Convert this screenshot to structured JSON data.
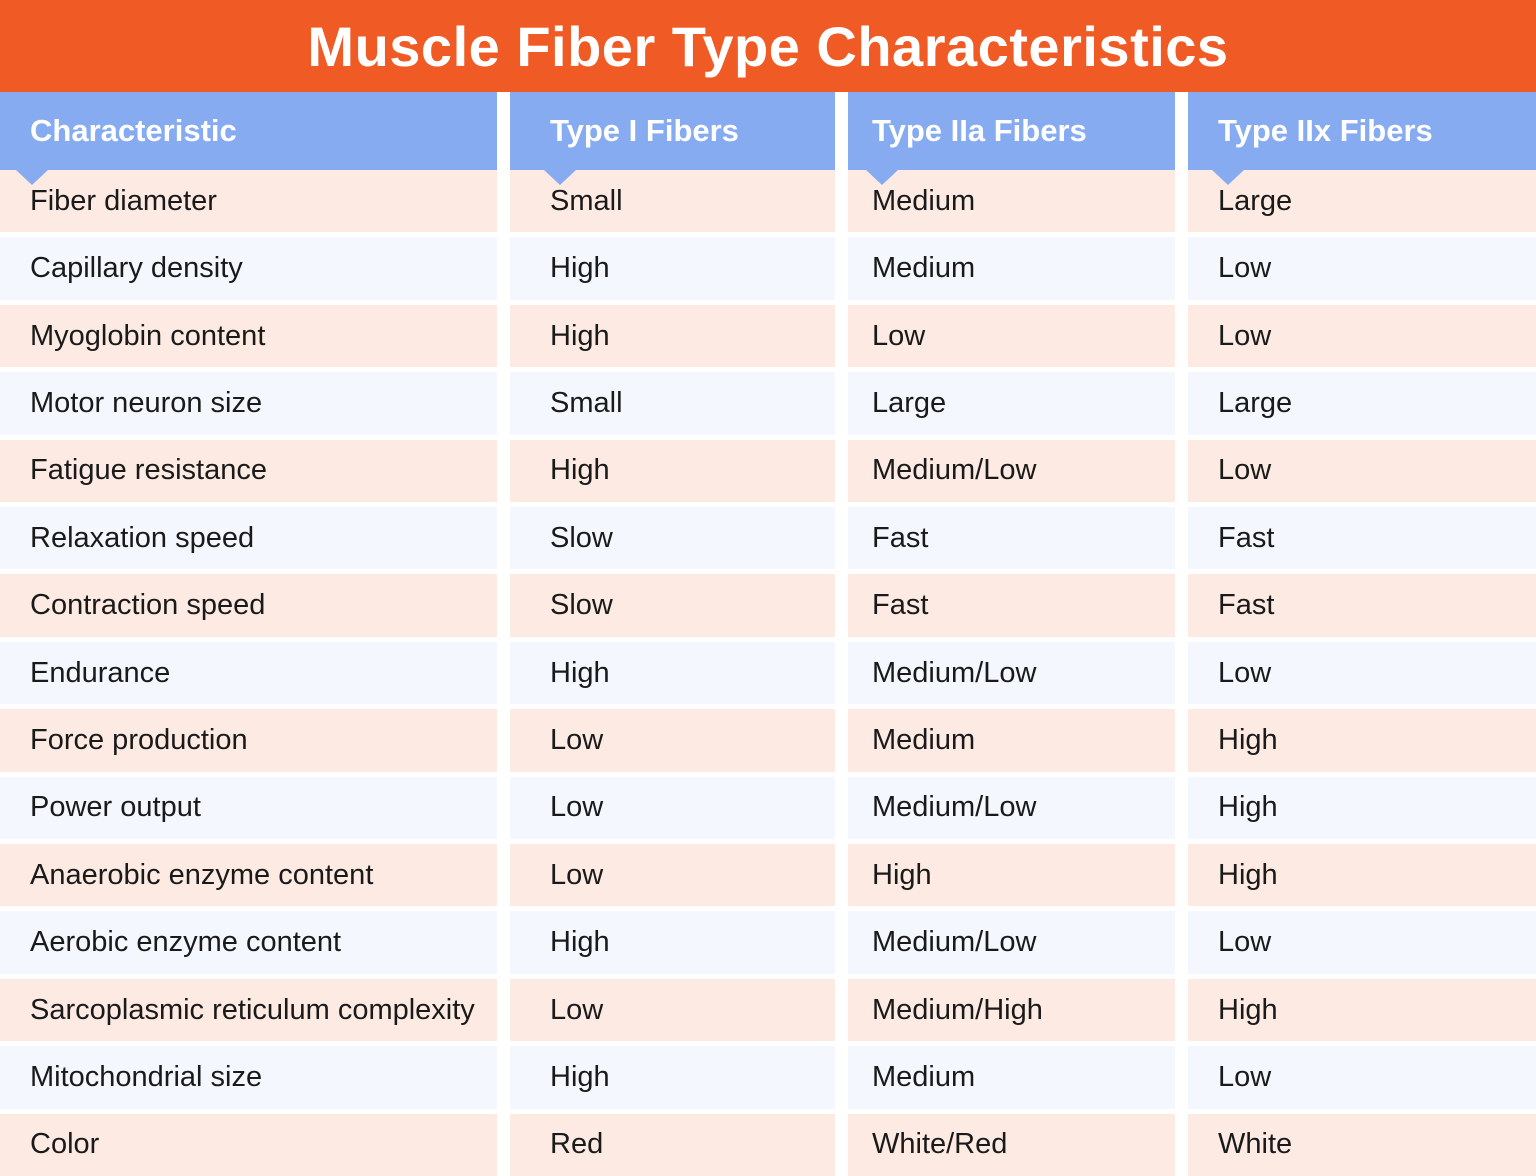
{
  "chart_data": {
    "type": "table",
    "title": "Muscle Fiber Type Characteristics",
    "columns": [
      "Characteristic",
      "Type I Fibers",
      "Type IIa Fibers",
      "Type IIx Fibers"
    ],
    "rows": [
      [
        "Fiber diameter",
        "Small",
        "Medium",
        "Large"
      ],
      [
        "Capillary density",
        "High",
        "Medium",
        "Low"
      ],
      [
        "Myoglobin content",
        "High",
        "Low",
        "Low"
      ],
      [
        "Motor neuron size",
        "Small",
        "Large",
        "Large"
      ],
      [
        "Fatigue resistance",
        "High",
        "Medium/Low",
        "Low"
      ],
      [
        "Relaxation speed",
        "Slow",
        "Fast",
        "Fast"
      ],
      [
        "Contraction speed",
        "Slow",
        "Fast",
        "Fast"
      ],
      [
        "Endurance",
        "High",
        "Medium/Low",
        "Low"
      ],
      [
        "Force production",
        "Low",
        "Medium",
        "High"
      ],
      [
        "Power output",
        "Low",
        "Medium/Low",
        "High"
      ],
      [
        "Anaerobic enzyme content",
        "Low",
        "High",
        "High"
      ],
      [
        "Aerobic enzyme content",
        "High",
        "Medium/Low",
        "Low"
      ],
      [
        "Sarcoplasmic reticulum complexity",
        "Low",
        "Medium/High",
        "High"
      ],
      [
        "Mitochondrial size",
        "High",
        "Medium",
        "Low"
      ],
      [
        "Color",
        "Red",
        "White/Red",
        "White"
      ]
    ]
  },
  "colors": {
    "orange": "#F05A24",
    "headerBlue": "#87ABF0",
    "pinkRow": "#FCEAE3",
    "blueRow": "#F4F7FD",
    "titleText": "#FFFFFF",
    "cellText": "#1A1A1A"
  }
}
